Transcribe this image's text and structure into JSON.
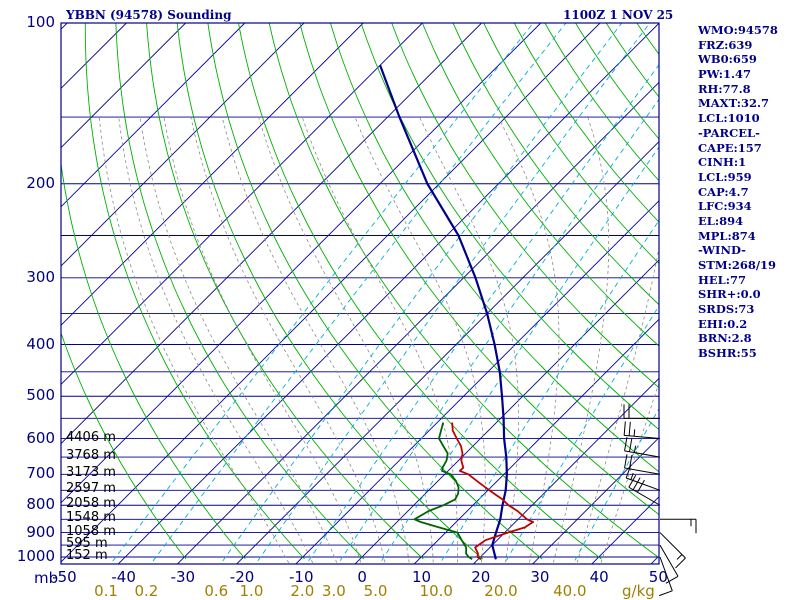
{
  "header": {
    "station_title": "YBBN (94578) Sounding",
    "time_title": "1100Z  1 NOV 25"
  },
  "indices": [
    "WMO:94578",
    "FRZ:639",
    "WB0:659",
    "PW:1.47",
    "RH:77.8",
    "MAXT:32.7",
    "LCL:1010",
    "-PARCEL-",
    "CAPE:157",
    "CINH:1",
    "LCL:959",
    "CAP:4.7",
    "LFC:934",
    "EL:894",
    "MPL:874",
    "-WIND-",
    "STM:268/19",
    "HEL:77",
    "SHR+:0.0",
    "SRDS:73",
    "EHI:0.2",
    "BRN:2.8",
    "BSHR:55"
  ],
  "colors": {
    "frame": "#00008b",
    "isobar": "#00008b",
    "isotherm": "#0000a0",
    "dry_adiabat": "#00b000",
    "moist_adiabat": "#8a8a8a",
    "mixing_ratio": "#00b0d0",
    "parcel": "#00008b",
    "temperature": "#c00000",
    "dewpoint": "#006400",
    "wind_barb": "#000000"
  },
  "chart_data": {
    "type": "line",
    "title": "YBBN (94578) Sounding",
    "pressure_axis": {
      "unit_label": "mb",
      "ticks": [
        "100",
        "200",
        "300",
        "400",
        "500",
        "600",
        "700",
        "800",
        "900",
        "1000"
      ],
      "range": [
        1050,
        100
      ],
      "log_scale": true
    },
    "temperature_axis": {
      "ticks": [
        "-50",
        "-40",
        "-30",
        "-20",
        "-10",
        "0",
        "10",
        "20",
        "30",
        "40",
        "50"
      ],
      "range": [
        -50,
        50
      ],
      "skew": true
    },
    "mixing_ratio_axis": {
      "unit_label": "g/kg",
      "ticks": [
        "0.1",
        "0.2",
        "0.6",
        "1.0",
        "2.0",
        "3.0",
        "5.0",
        "10.0",
        "20.0",
        "40.0"
      ]
    },
    "height_labels": [
      "4406 m",
      "3768 m",
      "3173 m",
      "2597 m",
      "2058 m",
      "1548 m",
      "1058 m",
      "595 m",
      "152 m"
    ],
    "height_pressures": [
      600,
      650,
      700,
      750,
      800,
      850,
      900,
      950,
      1000
    ],
    "series": [
      {
        "key": "parcel",
        "pressure": [
          1010,
          950,
          900,
          850,
          800,
          750,
          700,
          650,
          600,
          550,
          500,
          450,
          400,
          350,
          300,
          250,
          200,
          150,
          120
        ],
        "temperature": [
          23.0,
          20.0,
          18.5,
          17.0,
          15.0,
          13.0,
          10.5,
          7.5,
          4.0,
          0.5,
          -3.5,
          -8.0,
          -13.5,
          -20.0,
          -28.0,
          -38.0,
          -52.0,
          -68.0,
          -80.0
        ]
      },
      {
        "key": "temperature",
        "pressure": [
          1010,
          1000,
          985,
          960,
          930,
          900,
          880,
          860,
          850,
          820,
          800,
          780,
          760,
          740,
          720,
          700,
          690,
          680,
          660,
          640,
          620,
          600,
          580,
          560
        ],
        "temperature": [
          20.5,
          19.5,
          19.0,
          17.5,
          18.0,
          20.5,
          22.5,
          23.0,
          21.5,
          18.5,
          16.0,
          14.0,
          11.5,
          9.0,
          6.5,
          4.0,
          2.0,
          2.0,
          0.5,
          -0.5,
          -2.0,
          -4.0,
          -6.0,
          -7.5
        ]
      },
      {
        "key": "dewpoint",
        "pressure": [
          1010,
          1000,
          985,
          960,
          930,
          900,
          880,
          860,
          850,
          820,
          800,
          780,
          760,
          740,
          720,
          700,
          690,
          680,
          660,
          640,
          620,
          600,
          580,
          560
        ],
        "temperature": [
          19.0,
          18.0,
          17.0,
          16.0,
          14.0,
          12.0,
          8.0,
          4.0,
          2.5,
          3.5,
          5.0,
          6.0,
          5.5,
          4.5,
          3.0,
          1.0,
          -1.0,
          -1.5,
          -2.0,
          -3.0,
          -5.0,
          -7.0,
          -8.0,
          -9.0
        ]
      }
    ],
    "wind_barbs": {
      "pressure": [
        1000,
        950,
        900,
        850,
        800,
        750,
        700,
        650,
        600,
        550
      ],
      "direction_deg": [
        160,
        150,
        135,
        90,
        300,
        290,
        280,
        280,
        275,
        270
      ],
      "speed_kt": [
        10,
        12,
        15,
        15,
        30,
        15,
        20,
        25,
        25,
        20
      ]
    }
  }
}
